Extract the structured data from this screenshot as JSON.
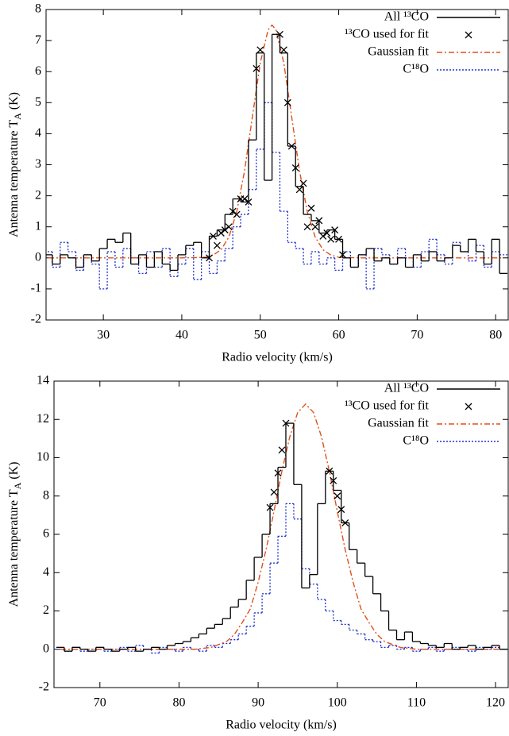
{
  "chart_data": [
    {
      "type": "line",
      "y_label": {
        "text": "Antenna temperature T",
        "subscript": "A",
        "unit": " (K)"
      },
      "x_label": "Radio velocity (km/s)",
      "xlim": [
        22.7,
        81.6
      ],
      "xticks": [
        30,
        40,
        50,
        60,
        70,
        80
      ],
      "ylim": [
        -2,
        8
      ],
      "yticks": [
        -2,
        -1,
        0,
        1,
        2,
        3,
        4,
        5,
        6,
        7,
        8
      ],
      "legend": "top-right",
      "series": [
        {
          "name": "All ¹³CO",
          "color": "#000000",
          "style": "step",
          "x": [
            23,
            24,
            25,
            26,
            27,
            28,
            29,
            30,
            31,
            32,
            33,
            34,
            35,
            36,
            37,
            38,
            39,
            40,
            41,
            42,
            43,
            44,
            45,
            46,
            47,
            48,
            49,
            50,
            51,
            52,
            53,
            54,
            55,
            56,
            57,
            58,
            59,
            60,
            61,
            62,
            63,
            64,
            65,
            66,
            67,
            68,
            69,
            70,
            71,
            72,
            73,
            74,
            75,
            76,
            77,
            78,
            79,
            80,
            81
          ],
          "values": [
            0.1,
            -0.2,
            0.1,
            0.0,
            -0.3,
            0.1,
            -0.1,
            0.3,
            0.6,
            0.5,
            0.8,
            -0.2,
            0.1,
            -0.3,
            0.2,
            -0.2,
            -0.4,
            0.1,
            0.4,
            0.5,
            0.0,
            0.7,
            0.9,
            1.4,
            1.9,
            1.8,
            3.8,
            6.6,
            2.5,
            7.2,
            6.6,
            3.6,
            2.3,
            1.4,
            1.2,
            0.8,
            0.9,
            0.6,
            0.0,
            -0.3,
            0.1,
            0.3,
            -0.1,
            0.0,
            -0.2,
            0.0,
            -0.3,
            0.1,
            -0.1,
            0.2,
            -0.1,
            0.0,
            0.4,
            0.2,
            0.6,
            0.2,
            -0.2,
            0.6,
            -0.5
          ]
        },
        {
          "name": "¹³CO used for fit",
          "color": "#000000",
          "style": "markers",
          "x": [
            43.5,
            44,
            44.5,
            45,
            45.5,
            46,
            46.5,
            47,
            47.5,
            48,
            48.5,
            49.5,
            50,
            52.5,
            53,
            53.5,
            54,
            54.5,
            55,
            55.5,
            56,
            56.5,
            57,
            57.5,
            58,
            58.5,
            59,
            59.5,
            60,
            60.5
          ],
          "values": [
            0.0,
            0.7,
            0.4,
            0.8,
            0.9,
            1.0,
            1.5,
            1.4,
            1.9,
            1.9,
            1.8,
            6.1,
            6.7,
            7.2,
            6.7,
            5.0,
            3.6,
            2.9,
            2.2,
            2.4,
            1.0,
            1.6,
            1.0,
            1.2,
            0.7,
            0.8,
            0.6,
            0.9,
            0.6,
            0.1
          ]
        },
        {
          "name": "Gaussian fit",
          "color": "#e0501a",
          "style": "dash-dot",
          "x": [
            23,
            40,
            42,
            43,
            44,
            45,
            46,
            47,
            48,
            49,
            50,
            51,
            51.5,
            52,
            53,
            54,
            55,
            56,
            57,
            58,
            59,
            60,
            61,
            63,
            81
          ],
          "values": [
            0,
            0,
            0.01,
            0.02,
            0.09,
            0.26,
            0.67,
            1.48,
            2.81,
            4.55,
            6.28,
            7.35,
            7.5,
            7.35,
            6.28,
            4.55,
            2.81,
            1.48,
            0.67,
            0.26,
            0.09,
            0.02,
            0.01,
            0,
            0
          ]
        },
        {
          "name": "C¹⁸O",
          "color": "#2233cc",
          "style": "step-dot",
          "x": [
            23,
            24,
            25,
            26,
            27,
            28,
            29,
            30,
            31,
            32,
            33,
            34,
            35,
            36,
            37,
            38,
            39,
            40,
            41,
            42,
            43,
            44,
            45,
            46,
            47,
            48,
            49,
            50,
            51,
            52,
            53,
            54,
            55,
            56,
            57,
            58,
            59,
            60,
            61,
            62,
            63,
            64,
            65,
            66,
            67,
            68,
            69,
            70,
            71,
            72,
            73,
            74,
            75,
            76,
            77,
            78,
            79,
            80,
            81
          ],
          "values": [
            0.2,
            -0.3,
            0.5,
            0.2,
            -0.4,
            0.1,
            -0.2,
            -1.0,
            0.2,
            -0.3,
            0.3,
            0.0,
            -0.5,
            0.2,
            -0.3,
            0.3,
            -0.6,
            -0.2,
            0.3,
            -0.7,
            0.2,
            -0.5,
            -0.1,
            0.3,
            1.0,
            1.4,
            2.2,
            3.5,
            5.0,
            3.4,
            1.5,
            0.5,
            0.3,
            -0.2,
            0.2,
            -0.2,
            0.0,
            -0.4,
            0.2,
            -0.3,
            0.1,
            -1.0,
            0.3,
            0.1,
            -0.2,
            0.3,
            0.0,
            -0.3,
            0.2,
            0.6,
            0.1,
            -0.2,
            0.5,
            0.2,
            -0.1,
            0.4,
            -0.3,
            0.2,
            0.1
          ]
        }
      ]
    },
    {
      "type": "line",
      "y_label": {
        "text": "Antenna temperature T",
        "subscript": "A",
        "unit": " (K)"
      },
      "x_label": "Radio velocity (km/s)",
      "xlim": [
        64.2,
        121.6
      ],
      "xticks": [
        70,
        80,
        90,
        100,
        110,
        120
      ],
      "ylim": [
        -2,
        14
      ],
      "yticks": [
        -2,
        0,
        2,
        4,
        6,
        8,
        10,
        12,
        14
      ],
      "legend": "top-right",
      "series": [
        {
          "name": "All ¹³CO",
          "color": "#000000",
          "style": "step",
          "x": [
            65,
            66,
            67,
            68,
            69,
            70,
            71,
            72,
            73,
            74,
            75,
            76,
            77,
            78,
            79,
            80,
            81,
            82,
            83,
            84,
            85,
            86,
            87,
            88,
            89,
            90,
            91,
            92,
            93,
            94,
            95,
            96,
            97,
            98,
            99,
            100,
            101,
            102,
            103,
            104,
            105,
            106,
            107,
            108,
            109,
            110,
            111,
            112,
            113,
            114,
            115,
            116,
            117,
            118,
            119,
            120,
            121
          ],
          "values": [
            0.1,
            -0.1,
            0.1,
            0.0,
            -0.1,
            0.1,
            0.0,
            -0.1,
            0.0,
            0.1,
            -0.1,
            0.0,
            0.1,
            0.0,
            0.2,
            0.3,
            0.4,
            0.6,
            0.8,
            1.1,
            1.3,
            1.6,
            2.2,
            2.6,
            3.6,
            4.8,
            6.0,
            7.6,
            9.5,
            11.8,
            8.6,
            3.2,
            3.9,
            7.6,
            9.3,
            8.3,
            6.6,
            5.2,
            4.5,
            3.8,
            2.9,
            2.0,
            1.0,
            0.5,
            0.9,
            0.4,
            0.3,
            0.2,
            0.1,
            0.3,
            0.0,
            0.1,
            0.2,
            0.0,
            0.1,
            0.2,
            0.0
          ]
        },
        {
          "name": "¹³CO used for fit",
          "color": "#000000",
          "style": "markers",
          "x": [
            91.5,
            92,
            92.5,
            93,
            93.5,
            99,
            99.5,
            100,
            100.5,
            101
          ],
          "values": [
            7.4,
            8.2,
            9.2,
            10.4,
            11.8,
            9.3,
            8.8,
            8.0,
            7.3,
            6.6
          ]
        },
        {
          "name": "Gaussian fit",
          "color": "#e0501a",
          "style": "dash-dot",
          "x": [
            65,
            82,
            84,
            86,
            87,
            88,
            89,
            90,
            91,
            92,
            93,
            94,
            95,
            96,
            97,
            98,
            99,
            100,
            101,
            102,
            103,
            104,
            105,
            106,
            108,
            110,
            121
          ],
          "values": [
            0,
            0,
            0.09,
            0.4,
            0.78,
            1.4,
            2.1,
            3.5,
            5.2,
            7.2,
            9.3,
            11.1,
            12.36,
            12.8,
            12.36,
            11.1,
            9.3,
            7.2,
            5.2,
            3.5,
            2.1,
            1.4,
            0.78,
            0.4,
            0.09,
            0,
            0
          ]
        },
        {
          "name": "C¹⁸O",
          "color": "#2233cc",
          "style": "step-dot",
          "x": [
            65,
            66,
            67,
            68,
            69,
            70,
            71,
            72,
            73,
            74,
            75,
            76,
            77,
            78,
            79,
            80,
            81,
            82,
            83,
            84,
            85,
            86,
            87,
            88,
            89,
            90,
            91,
            92,
            93,
            94,
            95,
            96,
            97,
            98,
            99,
            100,
            101,
            102,
            103,
            104,
            105,
            106,
            107,
            108,
            109,
            110,
            111,
            112,
            113,
            114,
            115,
            116,
            117,
            118,
            119,
            120,
            121
          ],
          "values": [
            0.0,
            -0.1,
            0.1,
            -0.1,
            0.0,
            0.1,
            -0.1,
            0.0,
            0.1,
            -0.1,
            0.2,
            0.0,
            -0.2,
            0.1,
            0.0,
            -0.1,
            0.1,
            0.0,
            -0.1,
            0.2,
            0.1,
            0.3,
            0.5,
            0.8,
            1.2,
            1.9,
            2.9,
            4.5,
            5.9,
            7.6,
            6.8,
            4.2,
            3.4,
            2.6,
            2.0,
            1.5,
            1.3,
            1.0,
            0.8,
            0.5,
            0.4,
            0.1,
            0.2,
            0.0,
            0.1,
            -0.1,
            0.0,
            0.1,
            -0.1,
            0.0,
            0.1,
            0.0,
            -0.1,
            0.1,
            0.0,
            0.1,
            0.0
          ]
        }
      ]
    }
  ]
}
